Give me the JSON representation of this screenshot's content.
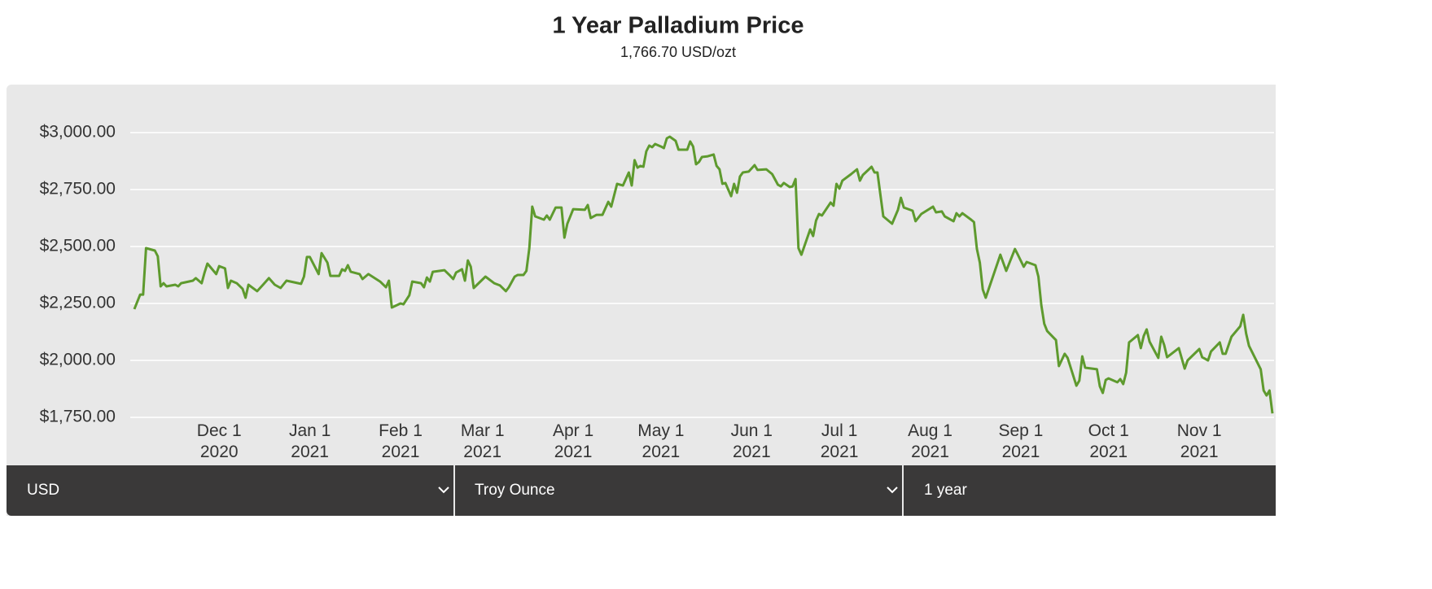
{
  "chart_data": {
    "type": "line",
    "title": "1 Year Palladium Price",
    "subtitle": "1,766.70 USD/ozt",
    "color": "#5e9a2e",
    "grid": true,
    "xlim": [
      "2020-11-02",
      "2021-11-26"
    ],
    "ylim": [
      1750,
      3000
    ],
    "yticks": [
      {
        "value": 1750,
        "label": "$1,750.00"
      },
      {
        "value": 2000,
        "label": "$2,000.00"
      },
      {
        "value": 2250,
        "label": "$2,250.00"
      },
      {
        "value": 2500,
        "label": "$2,500.00"
      },
      {
        "value": 2750,
        "label": "$2,750.00"
      },
      {
        "value": 3000,
        "label": "$3,000.00"
      }
    ],
    "xticks": [
      {
        "value": "2020-12-01",
        "label": "Dec 1\n2020"
      },
      {
        "value": "2021-01-01",
        "label": "Jan 1\n2021"
      },
      {
        "value": "2021-02-01",
        "label": "Feb 1\n2021"
      },
      {
        "value": "2021-03-01",
        "label": "Mar 1\n2021"
      },
      {
        "value": "2021-04-01",
        "label": "Apr 1\n2021"
      },
      {
        "value": "2021-05-01",
        "label": "May 1\n2021"
      },
      {
        "value": "2021-06-01",
        "label": "Jun 1\n2021"
      },
      {
        "value": "2021-07-01",
        "label": "Jul 1\n2021"
      },
      {
        "value": "2021-08-01",
        "label": "Aug 1\n2021"
      },
      {
        "value": "2021-09-01",
        "label": "Sep 1\n2021"
      },
      {
        "value": "2021-10-01",
        "label": "Oct 1\n2021"
      },
      {
        "value": "2021-11-01",
        "label": "Nov 1\n2021"
      }
    ],
    "x": [
      "2020-11-02",
      "2020-11-04",
      "2020-11-05",
      "2020-11-06",
      "2020-11-09",
      "2020-11-10",
      "2020-11-11",
      "2020-11-12",
      "2020-11-13",
      "2020-11-16",
      "2020-11-17",
      "2020-11-18",
      "2020-11-22",
      "2020-11-23",
      "2020-11-25",
      "2020-11-26",
      "2020-11-27",
      "2020-11-30",
      "2020-12-01",
      "2020-12-03",
      "2020-12-04",
      "2020-12-05",
      "2020-12-07",
      "2020-12-09",
      "2020-12-10",
      "2020-12-11",
      "2020-12-14",
      "2020-12-16",
      "2020-12-18",
      "2020-12-20",
      "2020-12-22",
      "2020-12-24",
      "2020-12-29",
      "2020-12-30",
      "2020-12-31",
      "2021-01-01",
      "2021-01-04",
      "2021-01-05",
      "2021-01-07",
      "2021-01-08",
      "2021-01-11",
      "2021-01-12",
      "2021-01-13",
      "2021-01-14",
      "2021-01-15",
      "2021-01-18",
      "2021-01-19",
      "2021-01-21",
      "2021-01-25",
      "2021-01-27",
      "2021-01-28",
      "2021-01-29",
      "2021-02-01",
      "2021-02-02",
      "2021-02-04",
      "2021-02-05",
      "2021-02-08",
      "2021-02-09",
      "2021-02-10",
      "2021-02-11",
      "2021-02-12",
      "2021-02-16",
      "2021-02-18",
      "2021-02-19",
      "2021-02-20",
      "2021-02-22",
      "2021-02-23",
      "2021-02-24",
      "2021-02-25",
      "2021-02-26",
      "2021-03-02",
      "2021-03-05",
      "2021-03-07",
      "2021-03-09",
      "2021-03-10",
      "2021-03-12",
      "2021-03-13",
      "2021-03-15",
      "2021-03-16",
      "2021-03-17",
      "2021-03-18",
      "2021-03-19",
      "2021-03-22",
      "2021-03-23",
      "2021-03-24",
      "2021-03-26",
      "2021-03-28",
      "2021-03-29",
      "2021-03-30",
      "2021-04-01",
      "2021-04-05",
      "2021-04-06",
      "2021-04-07",
      "2021-04-09",
      "2021-04-11",
      "2021-04-13",
      "2021-04-14",
      "2021-04-16",
      "2021-04-18",
      "2021-04-20",
      "2021-04-21",
      "2021-04-22",
      "2021-04-23",
      "2021-04-24",
      "2021-04-25",
      "2021-04-26",
      "2021-04-27",
      "2021-04-28",
      "2021-04-29",
      "2021-05-01",
      "2021-05-02",
      "2021-05-03",
      "2021-05-04",
      "2021-05-06",
      "2021-05-07",
      "2021-05-10",
      "2021-05-11",
      "2021-05-12",
      "2021-05-13",
      "2021-05-14",
      "2021-05-15",
      "2021-05-17",
      "2021-05-19",
      "2021-05-20",
      "2021-05-21",
      "2021-05-22",
      "2021-05-23",
      "2021-05-25",
      "2021-05-26",
      "2021-05-27",
      "2021-05-28",
      "2021-05-29",
      "2021-05-31",
      "2021-06-02",
      "2021-06-03",
      "2021-06-06",
      "2021-06-08",
      "2021-06-10",
      "2021-06-11",
      "2021-06-12",
      "2021-06-14",
      "2021-06-15",
      "2021-06-16",
      "2021-06-17",
      "2021-06-18",
      "2021-06-21",
      "2021-06-22",
      "2021-06-23",
      "2021-06-24",
      "2021-06-25",
      "2021-06-28",
      "2021-06-29",
      "2021-06-30",
      "2021-07-01",
      "2021-07-02",
      "2021-07-05",
      "2021-07-07",
      "2021-07-08",
      "2021-07-09",
      "2021-07-12",
      "2021-07-13",
      "2021-07-14",
      "2021-07-16",
      "2021-07-19",
      "2021-07-21",
      "2021-07-22",
      "2021-07-23",
      "2021-07-26",
      "2021-07-27",
      "2021-07-29",
      "2021-08-02",
      "2021-08-03",
      "2021-08-05",
      "2021-08-06",
      "2021-08-09",
      "2021-08-10",
      "2021-08-11",
      "2021-08-12",
      "2021-08-15",
      "2021-08-16",
      "2021-08-17",
      "2021-08-18",
      "2021-08-19",
      "2021-08-20",
      "2021-08-25",
      "2021-08-27",
      "2021-08-30",
      "2021-08-31",
      "2021-09-02",
      "2021-09-03",
      "2021-09-06",
      "2021-09-07",
      "2021-09-08",
      "2021-09-09",
      "2021-09-10",
      "2021-09-13",
      "2021-09-14",
      "2021-09-16",
      "2021-09-17",
      "2021-09-20",
      "2021-09-21",
      "2021-09-22",
      "2021-09-23",
      "2021-09-27",
      "2021-09-28",
      "2021-09-29",
      "2021-09-30",
      "2021-10-01",
      "2021-10-04",
      "2021-10-05",
      "2021-10-06",
      "2021-10-07",
      "2021-10-08",
      "2021-10-11",
      "2021-10-12",
      "2021-10-13",
      "2021-10-14",
      "2021-10-15",
      "2021-10-18",
      "2021-10-19",
      "2021-10-20",
      "2021-10-21",
      "2021-10-25",
      "2021-10-27",
      "2021-10-28",
      "2021-11-01",
      "2021-11-02",
      "2021-11-04",
      "2021-11-05",
      "2021-11-08",
      "2021-11-09",
      "2021-11-10",
      "2021-11-12",
      "2021-11-15",
      "2021-11-16",
      "2021-11-17",
      "2021-11-18",
      "2021-11-22",
      "2021-11-23",
      "2021-11-24",
      "2021-11-25",
      "2021-11-26"
    ],
    "values": [
      2225,
      2289,
      2289,
      2493,
      2482,
      2457,
      2325,
      2339,
      2325,
      2332,
      2325,
      2339,
      2350,
      2361,
      2339,
      2386,
      2425,
      2379,
      2414,
      2404,
      2318,
      2350,
      2339,
      2314,
      2275,
      2332,
      2304,
      2332,
      2361,
      2332,
      2318,
      2350,
      2336,
      2368,
      2454,
      2454,
      2379,
      2471,
      2429,
      2371,
      2371,
      2400,
      2393,
      2418,
      2389,
      2379,
      2357,
      2379,
      2346,
      2321,
      2350,
      2232,
      2250,
      2246,
      2286,
      2346,
      2339,
      2321,
      2364,
      2346,
      2389,
      2396,
      2371,
      2357,
      2386,
      2400,
      2350,
      2439,
      2411,
      2318,
      2368,
      2339,
      2329,
      2304,
      2321,
      2368,
      2375,
      2375,
      2393,
      2493,
      2675,
      2632,
      2618,
      2636,
      2618,
      2671,
      2671,
      2539,
      2600,
      2664,
      2661,
      2682,
      2625,
      2639,
      2639,
      2696,
      2675,
      2775,
      2768,
      2825,
      2768,
      2879,
      2846,
      2854,
      2850,
      2918,
      2943,
      2936,
      2950,
      2939,
      2932,
      2975,
      2982,
      2964,
      2925,
      2925,
      2961,
      2939,
      2861,
      2871,
      2893,
      2896,
      2904,
      2854,
      2839,
      2775,
      2779,
      2721,
      2775,
      2736,
      2807,
      2825,
      2829,
      2857,
      2836,
      2839,
      2818,
      2771,
      2764,
      2779,
      2761,
      2764,
      2796,
      2493,
      2464,
      2575,
      2546,
      2614,
      2643,
      2636,
      2693,
      2679,
      2775,
      2754,
      2789,
      2818,
      2839,
      2789,
      2814,
      2850,
      2825,
      2825,
      2632,
      2600,
      2661,
      2714,
      2671,
      2657,
      2611,
      2643,
      2675,
      2650,
      2654,
      2632,
      2611,
      2646,
      2632,
      2646,
      2618,
      2607,
      2489,
      2429,
      2311,
      2275,
      2464,
      2393,
      2489,
      2464,
      2411,
      2432,
      2418,
      2368,
      2243,
      2161,
      2129,
      2089,
      1975,
      2029,
      2011,
      1889,
      1911,
      2018,
      1968,
      1961,
      1886,
      1857,
      1914,
      1921,
      1904,
      1918,
      1896,
      1946,
      2079,
      2111,
      2054,
      2107,
      2136,
      2082,
      2011,
      2104,
      2068,
      2014,
      2054,
      1964,
      2000,
      2050,
      2014,
      2000,
      2039,
      2079,
      2029,
      2029,
      2104,
      2150,
      2200,
      2118,
      2064,
      1961,
      1868,
      1846,
      1868,
      1767
    ]
  },
  "controls": [
    "USD",
    "Troy Ounce",
    "1 year"
  ]
}
